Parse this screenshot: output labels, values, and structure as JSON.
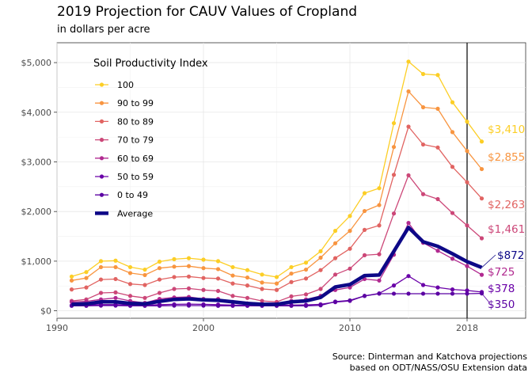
{
  "chart_data": {
    "type": "line",
    "title": "2019 Projection for CAUV Values of Cropland",
    "subtitle": "in dollars per acre",
    "caption_lines": [
      "Source: Dinterman and Katchova projections",
      "based on ODT/NASS/OSU Extension data"
    ],
    "xlabel": "",
    "ylabel": "",
    "xlim": [
      1990,
      2022
    ],
    "ylim": [
      0,
      5000
    ],
    "x_ticks": [
      1990,
      2000,
      2010,
      2018
    ],
    "y_ticks": [
      0,
      1000,
      2000,
      3000,
      4000,
      5000
    ],
    "y_tick_labels": [
      "$0",
      "$1,000",
      "$2,000",
      "$3,000",
      "$4,000",
      "$5,000"
    ],
    "grid": true,
    "vline_x": 2018,
    "legend": {
      "title": "Soil Productivity Index",
      "position": "top-left"
    },
    "x": [
      1991,
      1992,
      1993,
      1994,
      1995,
      1996,
      1997,
      1998,
      1999,
      2000,
      2001,
      2002,
      2003,
      2004,
      2005,
      2006,
      2007,
      2008,
      2009,
      2010,
      2011,
      2012,
      2013,
      2014,
      2015,
      2016,
      2017,
      2018,
      2019
    ],
    "series": [
      {
        "name": "100",
        "color": "#fcce25",
        "end_label": "$3,410",
        "values": [
          690,
          780,
          1000,
          1010,
          880,
          830,
          990,
          1040,
          1060,
          1030,
          1000,
          880,
          820,
          730,
          680,
          880,
          970,
          1200,
          1610,
          1910,
          2370,
          2470,
          3780,
          5020,
          4770,
          4750,
          4200,
          3810,
          3410
        ]
      },
      {
        "name": "90 to 99",
        "color": "#f89540",
        "end_label": "$2,855",
        "values": [
          610,
          660,
          880,
          880,
          760,
          720,
          860,
          890,
          900,
          860,
          840,
          710,
          670,
          570,
          550,
          750,
          830,
          1070,
          1360,
          1610,
          2010,
          2130,
          3300,
          4420,
          4100,
          4070,
          3600,
          3220,
          2855
        ]
      },
      {
        "name": "80 to 89",
        "color": "#e16462",
        "end_label": "$2,263",
        "values": [
          430,
          470,
          630,
          640,
          540,
          520,
          630,
          680,
          690,
          660,
          650,
          550,
          510,
          440,
          420,
          580,
          650,
          820,
          1060,
          1250,
          1630,
          1720,
          2740,
          3710,
          3350,
          3290,
          2900,
          2590,
          2263
        ]
      },
      {
        "name": "70 to 79",
        "color": "#cc4778",
        "end_label": "$1,461",
        "values": [
          200,
          230,
          360,
          370,
          300,
          260,
          360,
          440,
          450,
          420,
          400,
          300,
          260,
          200,
          180,
          290,
          330,
          440,
          730,
          850,
          1120,
          1140,
          1960,
          2730,
          2350,
          2250,
          1970,
          1720,
          1461
        ]
      },
      {
        "name": "60 to 69",
        "color": "#b12a90",
        "end_label": "$725",
        "values": [
          180,
          190,
          230,
          260,
          200,
          160,
          240,
          270,
          280,
          240,
          240,
          180,
          150,
          140,
          130,
          200,
          230,
          300,
          420,
          470,
          640,
          610,
          1130,
          1770,
          1370,
          1210,
          1050,
          900,
          725
        ]
      },
      {
        "name": "50 to 59",
        "color": "#6a00a8",
        "end_label": "$378",
        "values": [
          110,
          115,
          125,
          125,
          115,
          110,
          125,
          130,
          135,
          130,
          125,
          115,
          110,
          110,
          110,
          115,
          120,
          130,
          175,
          200,
          300,
          350,
          510,
          700,
          520,
          470,
          430,
          410,
          378
        ]
      },
      {
        "name": "0 to 49",
        "color": "#5b02a3",
        "end_label": "$350",
        "values": [
          100,
          100,
          105,
          105,
          100,
          100,
          100,
          105,
          105,
          105,
          100,
          100,
          100,
          100,
          100,
          100,
          100,
          110,
          185,
          210,
          300,
          345,
          345,
          345,
          345,
          345,
          345,
          345,
          350
        ]
      },
      {
        "name": "Average",
        "color": "#0d0887",
        "end_label": "$872",
        "values": [
          130,
          140,
          180,
          180,
          150,
          140,
          190,
          230,
          240,
          220,
          210,
          180,
          150,
          130,
          130,
          180,
          200,
          270,
          480,
          530,
          710,
          720,
          1200,
          1680,
          1390,
          1300,
          1150,
          990,
          872
        ]
      }
    ]
  }
}
